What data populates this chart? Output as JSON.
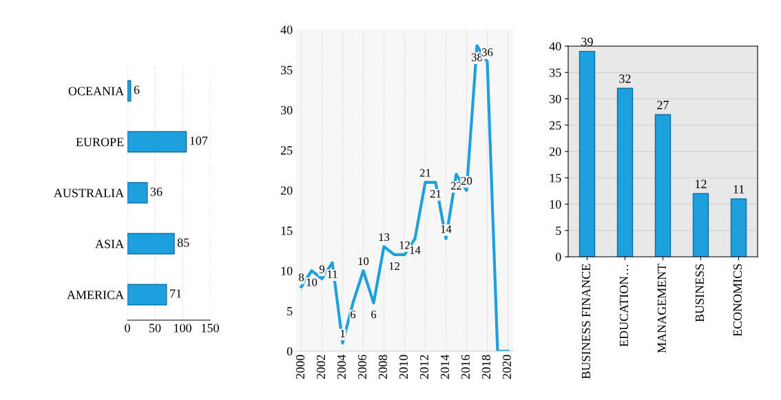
{
  "chart_data": [
    {
      "type": "bar",
      "orientation": "horizontal",
      "categories": [
        "OCEANIA",
        "EUROPE",
        "AUSTRALIA",
        "ASIA",
        "AMERICA"
      ],
      "values": [
        6,
        107,
        36,
        85,
        71
      ],
      "color": "#1e9fde",
      "data_labels": true,
      "xlim": [
        0,
        150
      ],
      "xticks": [
        0,
        50,
        100,
        150
      ],
      "grid": "x"
    },
    {
      "type": "line",
      "x": [
        2000,
        2001,
        2002,
        2003,
        2004,
        2005,
        2006,
        2007,
        2008,
        2009,
        2010,
        2011,
        2012,
        2013,
        2014,
        2015,
        2016,
        2017,
        2018,
        2019,
        2020
      ],
      "values": [
        8,
        10,
        9,
        11,
        1,
        6,
        10,
        6,
        13,
        12,
        12,
        14,
        21,
        21,
        14,
        22,
        20,
        38,
        36,
        0,
        0
      ],
      "value_labels": [
        "8",
        "10",
        "9",
        "11",
        "1",
        "6",
        "10",
        "6",
        "13",
        "12",
        "12",
        "14",
        "21",
        "21",
        "14",
        "22",
        "20",
        "38",
        "36",
        null,
        null
      ],
      "color": "#1e9fde",
      "xlim": [
        1999.5,
        2020.5
      ],
      "xticks": [
        2000,
        2002,
        2004,
        2006,
        2008,
        2010,
        2012,
        2014,
        2016,
        2018,
        2020
      ],
      "ylim": [
        0,
        40
      ],
      "yticks": [
        0,
        5,
        10,
        15,
        20,
        25,
        30,
        35,
        40
      ],
      "grid": "x"
    },
    {
      "type": "bar",
      "categories": [
        "BUSINESS FINANCE",
        "EDUCATION…",
        "MANAGEMENT",
        "BUSINESS",
        "ECONOMICS"
      ],
      "values": [
        39,
        32,
        27,
        12,
        11
      ],
      "color": "#1e9fde",
      "data_labels": true,
      "ylim": [
        0,
        40
      ],
      "yticks": [
        0,
        5,
        10,
        15,
        20,
        25,
        30,
        35,
        40
      ],
      "grid": "y"
    }
  ]
}
